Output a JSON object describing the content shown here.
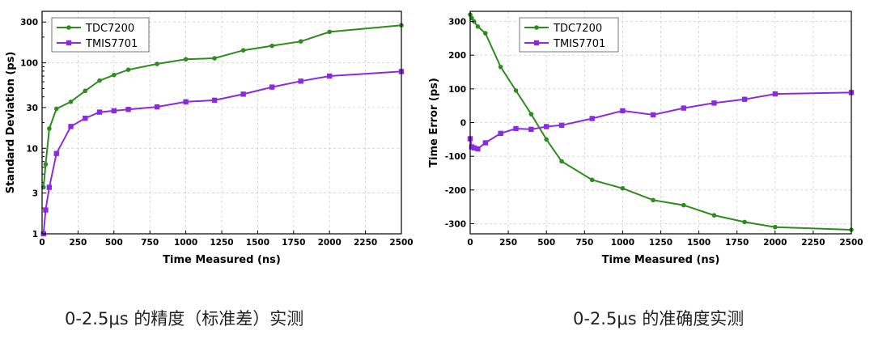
{
  "chart_data": [
    {
      "type": "line",
      "xlabel": "Time Measured (ns)",
      "ylabel": "Standard Deviation (ps)",
      "yscale": "log",
      "xlim": [
        0,
        2500
      ],
      "ylim": [
        1,
        400
      ],
      "xticks": [
        "0",
        "250",
        "500",
        "750",
        "1000",
        "1250",
        "1500",
        "1750",
        "2000",
        "2250",
        "2500"
      ],
      "yticks": [
        "1",
        "3",
        "10",
        "30",
        "100",
        "300"
      ],
      "ytick_values": [
        1,
        3,
        10,
        30,
        100,
        300
      ],
      "grid": true,
      "legend": "top-left",
      "series": [
        {
          "name": "TDC7200",
          "color": "#2e8b1e",
          "marker": "circle",
          "x": [
            10,
            25,
            50,
            100,
            200,
            300,
            400,
            500,
            600,
            800,
            1000,
            1200,
            1400,
            1600,
            1800,
            2000,
            2500
          ],
          "y": [
            3.5,
            6.5,
            17,
            29,
            35,
            47,
            62,
            72,
            83,
            97,
            110,
            113,
            140,
            158,
            178,
            230,
            275
          ]
        },
        {
          "name": "TMIS7701",
          "color": "#8a2be2",
          "marker": "square",
          "x": [
            10,
            25,
            50,
            100,
            200,
            300,
            400,
            500,
            600,
            800,
            1000,
            1200,
            1400,
            1600,
            1800,
            2000,
            2500
          ],
          "y": [
            1,
            1.9,
            3.5,
            8.7,
            18,
            22.5,
            26.5,
            27.5,
            28.5,
            30.5,
            35,
            36.5,
            43,
            52,
            61,
            70,
            79
          ]
        }
      ]
    },
    {
      "type": "line",
      "xlabel": "Time Measured (ns)",
      "ylabel": "Time Error (ps)",
      "xlim": [
        0,
        2500
      ],
      "ylim": [
        -330,
        330
      ],
      "xticks": [
        "0",
        "250",
        "500",
        "750",
        "1000",
        "1250",
        "1500",
        "1750",
        "2000",
        "2250",
        "2500"
      ],
      "yticks": [
        "300",
        "200",
        "100",
        "0",
        "-100",
        "-200",
        "-300"
      ],
      "ytick_values": [
        300,
        200,
        100,
        0,
        -100,
        -200,
        -300
      ],
      "grid": true,
      "legend": "top-center",
      "series": [
        {
          "name": "TDC7200",
          "color": "#2e8b1e",
          "marker": "circle",
          "x": [
            0,
            10,
            25,
            50,
            100,
            200,
            300,
            400,
            500,
            600,
            800,
            1000,
            1200,
            1400,
            1600,
            1800,
            2000,
            2500
          ],
          "y": [
            320,
            310,
            300,
            285,
            265,
            165,
            95,
            25,
            -50,
            -115,
            -170,
            -195,
            -230,
            -245,
            -275,
            -295,
            -310,
            -318
          ]
        },
        {
          "name": "TMIS7701",
          "color": "#8a2be2",
          "marker": "square",
          "x": [
            0,
            10,
            25,
            50,
            100,
            200,
            300,
            400,
            500,
            600,
            800,
            1000,
            1200,
            1400,
            1600,
            1800,
            2000,
            2500
          ],
          "y": [
            -48,
            -72,
            -75,
            -78,
            -60,
            -32,
            -18,
            -20,
            -12,
            -8,
            12,
            35,
            23,
            43,
            58,
            69,
            85,
            89
          ]
        }
      ]
    }
  ],
  "captions": {
    "left": "0-2.5μs 的精度（标准差）实测",
    "right": "0-2.5μs 的准确度实测"
  }
}
